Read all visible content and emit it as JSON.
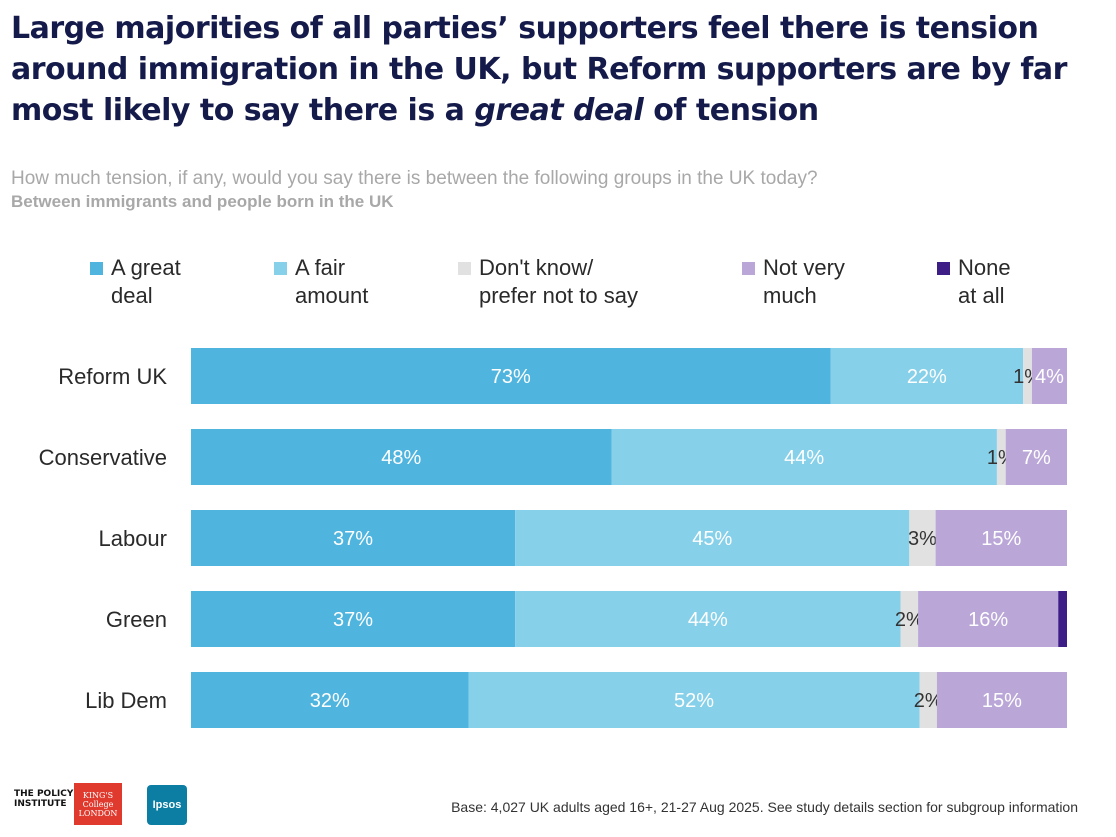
{
  "title": {
    "part1": "Large majorities of all parties’ supporters feel there is tension around immigration in the UK, but Reform supporters are by far most likely to say there is a ",
    "emphasis": "great deal",
    "part2": " of tension"
  },
  "question": "How much tension, if any, would you say there is between the following groups in the UK today?",
  "subtitle": "Between immigrants and people born in the UK",
  "legend": [
    {
      "label_line1": "A great",
      "label_line2": "deal",
      "color": "#4fb5df"
    },
    {
      "label_line1": "A fair",
      "label_line2": "amount",
      "color": "#86d0ea"
    },
    {
      "label_line1": "Don't know/",
      "label_line2": "prefer not to say",
      "color": "#e1e1e1"
    },
    {
      "label_line1": "Not very",
      "label_line2": "much",
      "color": "#baa7d8"
    },
    {
      "label_line1": "None",
      "label_line2": "at all",
      "color": "#3d1e86"
    }
  ],
  "chart_data": {
    "type": "bar",
    "orientation": "horizontal",
    "stacked": true,
    "unit": "%",
    "categories": [
      "Reform UK",
      "Conservative",
      "Labour",
      "Green",
      "Lib Dem"
    ],
    "series": [
      {
        "name": "A great deal",
        "color": "#4fb5df",
        "values": [
          73,
          48,
          37,
          37,
          32
        ],
        "labels": [
          "73%",
          "48%",
          "37%",
          "37%",
          "32%"
        ]
      },
      {
        "name": "A fair amount",
        "color": "#86d0ea",
        "values": [
          22,
          44,
          45,
          44,
          52
        ],
        "labels": [
          "22%",
          "44%",
          "45%",
          "44%",
          "52%"
        ]
      },
      {
        "name": "Don't know/prefer not to say",
        "color": "#e1e1e1",
        "values": [
          1,
          1,
          3,
          2,
          2
        ],
        "labels": [
          "1%",
          "1%",
          "3%",
          "2%",
          "2%"
        ]
      },
      {
        "name": "Not very much",
        "color": "#baa7d8",
        "values": [
          4,
          7,
          15,
          16,
          15
        ],
        "labels": [
          "4%",
          "7%",
          "15%",
          "16%",
          "15%"
        ]
      },
      {
        "name": "None at all",
        "color": "#3d1e86",
        "values": [
          0,
          0,
          0,
          1,
          0
        ],
        "labels": [
          "",
          "",
          "",
          "",
          ""
        ]
      }
    ],
    "xlim": [
      0,
      100
    ],
    "grid": false,
    "legend_position": "top"
  },
  "footer": {
    "base": "Base: 4,027 UK adults aged 16+, 21-27 Aug 2025. See study details section for subgroup information",
    "logo_policy": "THE POLICY INSTITUTE",
    "logo_kings": "KING'S College LONDON",
    "logo_ipsos": "Ipsos"
  }
}
